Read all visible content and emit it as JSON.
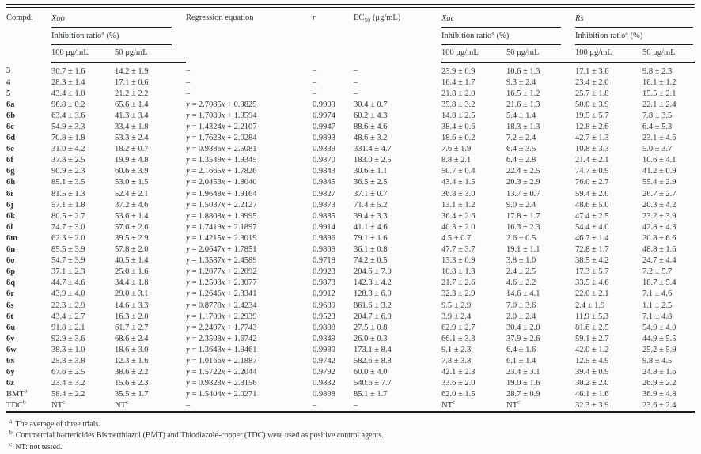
{
  "header": {
    "compd": "Compd.",
    "xoo": "Xoo",
    "xac": "Xac",
    "rs": "Rs",
    "regression": "Regression equation",
    "r": "r",
    "ec50_prefix": "EC",
    "ec50_sub": "50",
    "ec50_unit": "(μg/mL)",
    "inhibition": "Inhibition ratio",
    "inhibition_sup": "a",
    "inhibition_unit": "(%)",
    "dose_100": "100 μg/mL",
    "dose_50": "50 μg/mL"
  },
  "table": {
    "column_keys": [
      "compd",
      "xoo100",
      "xoo50",
      "eq",
      "r",
      "ec50",
      "xac100",
      "xac50",
      "rs100",
      "rs50"
    ],
    "rows": [
      {
        "compd": "3",
        "xoo100": "30.7 ± 1.6",
        "xoo50": "14.2 ± 1.9",
        "eq": "–",
        "r": "–",
        "ec50": "–",
        "xac100": "23.9 ± 0.9",
        "xac50": "10.6 ± 1.3",
        "rs100": "17.1 ± 3.6",
        "rs50": "9.8 ± 2.3"
      },
      {
        "compd": "4",
        "xoo100": "28.3 ± 1.4",
        "xoo50": "17.1 ± 0.6",
        "eq": "–",
        "r": "–",
        "ec50": "–",
        "xac100": "16.4 ± 1.7",
        "xac50": "9.3 ± 2.4",
        "rs100": "23.4 ± 2.0",
        "rs50": "16.1 ± 1.2"
      },
      {
        "compd": "5",
        "xoo100": "43.4 ± 1.0",
        "xoo50": "21.2 ± 2.2",
        "eq": "–",
        "r": "–",
        "ec50": "–",
        "xac100": "21.8 ± 2.0",
        "xac50": "16.5 ± 1.2",
        "rs100": "25.7 ± 1.8",
        "rs50": "15.5 ± 2.1"
      },
      {
        "compd": "6a",
        "xoo100": "96.8 ± 0.2",
        "xoo50": "65.6 ± 1.4",
        "eq": "y = 2.7085x + 0.9825",
        "r": "0.9909",
        "ec50": "30.4 ± 0.7",
        "xac100": "35.8 ± 3.2",
        "xac50": "21.6 ± 1.3",
        "rs100": "50.0 ± 3.9",
        "rs50": "22.1 ± 2.4"
      },
      {
        "compd": "6b",
        "xoo100": "63.4 ± 3.6",
        "xoo50": "41.3 ± 3.4",
        "eq": "y = 1.7089x + 1.9594",
        "r": "0.9974",
        "ec50": "60.2 ± 4.3",
        "xac100": "14.8 ± 2.5",
        "xac50": "5.4 ± 1.4",
        "rs100": "19.5 ± 5.7",
        "rs50": "7.8 ± 3.5"
      },
      {
        "compd": "6c",
        "xoo100": "54.9 ± 3.3",
        "xoo50": "33.4 ± 1.8",
        "eq": "y = 1.4324x + 2.2107",
        "r": "0.9947",
        "ec50": "88.6 ± 4.6",
        "xac100": "38.4 ± 0.6",
        "xac50": "18.3 ± 1.3",
        "rs100": "12.8 ± 2.6",
        "rs50": "6.4 ± 5.3"
      },
      {
        "compd": "6d",
        "xoo100": "70.8 ± 1.8",
        "xoo50": "53.3 ± 2.4",
        "eq": "y = 1.7623x + 2.0284",
        "r": "0.9893",
        "ec50": "48.6 ± 3.2",
        "xac100": "18.6 ± 0.2",
        "xac50": "7.2 ± 2.4",
        "rs100": "42.7 ± 1.3",
        "rs50": "23.1 ± 4.6"
      },
      {
        "compd": "6e",
        "xoo100": "31.0 ± 4.2",
        "xoo50": "18.2 ± 0.7",
        "eq": "y = 0.9886x + 2.5081",
        "r": "0.9839",
        "ec50": "331.4 ± 4.7",
        "xac100": "7.6 ± 1.9",
        "xac50": "6.4 ± 3.5",
        "rs100": "10.8 ± 3.3",
        "rs50": "5.0 ± 3.7"
      },
      {
        "compd": "6f",
        "xoo100": "37.8 ± 2.5",
        "xoo50": "19.9 ± 4.8",
        "eq": "y = 1.3549x + 1.9345",
        "r": "0.9870",
        "ec50": "183.0 ± 2.5",
        "xac100": "8.8 ± 2.1",
        "xac50": "6.4 ± 2.8",
        "rs100": "21.4 ± 2.1",
        "rs50": "10.6 ± 4.1"
      },
      {
        "compd": "6g",
        "xoo100": "90.9 ± 2.3",
        "xoo50": "60.6 ± 3.9",
        "eq": "y = 2.1665x + 1.7826",
        "r": "0.9843",
        "ec50": "30.6 ± 1.1",
        "xac100": "50.7 ± 0.4",
        "xac50": "22.4 ± 2.5",
        "rs100": "74.7 ± 0.9",
        "rs50": "41.2 ± 0.9"
      },
      {
        "compd": "6h",
        "xoo100": "85.1 ± 3.5",
        "xoo50": "53.0 ± 1.5",
        "eq": "y = 2.0453x + 1.8040",
        "r": "0.9845",
        "ec50": "36.5 ± 2.5",
        "xac100": "43.4 ± 1.5",
        "xac50": "20.3 ± 2.9",
        "rs100": "76.0 ± 2.7",
        "rs50": "55.4 ± 2.9"
      },
      {
        "compd": "6i",
        "xoo100": "81.5 ± 1.3",
        "xoo50": "52.4 ± 2.1",
        "eq": "y = 1.9648x + 1.9164",
        "r": "0.9827",
        "ec50": "37.1 ± 0.7",
        "xac100": "36.8 ± 3.0",
        "xac50": "13.7 ± 0.7",
        "rs100": "59.4 ± 2.0",
        "rs50": "26.7 ± 2.7"
      },
      {
        "compd": "6j",
        "xoo100": "57.1 ± 1.8",
        "xoo50": "37.2 ± 4.6",
        "eq": "y = 1.5037x + 2.2127",
        "r": "0.9873",
        "ec50": "71.4 ± 5.2",
        "xac100": "13.1 ± 1.2",
        "xac50": "9.0 ± 2.4",
        "rs100": "48.6 ± 5.0",
        "rs50": "20.3 ± 4.2"
      },
      {
        "compd": "6k",
        "xoo100": "80.5 ± 2.7",
        "xoo50": "53.6 ± 1.4",
        "eq": "y = 1.8808x + 1.9995",
        "r": "0.9885",
        "ec50": "39.4 ± 3.3",
        "xac100": "36.4 ± 2.6",
        "xac50": "17.8 ± 1.7",
        "rs100": "47.4 ± 2.5",
        "rs50": "23.2 ± 3.9"
      },
      {
        "compd": "6l",
        "xoo100": "74.7 ± 3.0",
        "xoo50": "57.6 ± 2.6",
        "eq": "y = 1.7419x + 2.1897",
        "r": "0.9914",
        "ec50": "41.1 ± 4.6",
        "xac100": "40.3 ± 2.0",
        "xac50": "16.3 ± 2.3",
        "rs100": "54.4 ± 4.0",
        "rs50": "42.8 ± 4.3"
      },
      {
        "compd": "6m",
        "xoo100": "62.3 ± 2.0",
        "xoo50": "39.5 ± 2.9",
        "eq": "y = 1.4215x + 2.3019",
        "r": "0.9896",
        "ec50": "79.1 ± 1.6",
        "xac100": "4.5 ± 0.7",
        "xac50": "2.6 ± 0.5",
        "rs100": "46.7 ± 1.4",
        "rs50": "20.8 ± 6.6"
      },
      {
        "compd": "6n",
        "xoo100": "85.5 ± 3.9",
        "xoo50": "57.8 ± 2.0",
        "eq": "y = 2.0647x + 1.7851",
        "r": "0.9808",
        "ec50": "36.1 ± 0.8",
        "xac100": "47.7 ± 3.7",
        "xac50": "19.1 ± 1.1",
        "rs100": "72.8 ± 1.7",
        "rs50": "48.8 ± 1.6"
      },
      {
        "compd": "6o",
        "xoo100": "54.7 ± 3.9",
        "xoo50": "40.5 ± 1.4",
        "eq": "y = 1.3587x + 2.4589",
        "r": "0.9718",
        "ec50": "74.2 ± 0.5",
        "xac100": "13.3 ± 0.9",
        "xac50": "3.8 ± 1.0",
        "rs100": "38.5 ± 4.2",
        "rs50": "24.7 ± 4.4"
      },
      {
        "compd": "6p",
        "xoo100": "37.1 ± 2.3",
        "xoo50": "25.0 ± 1.6",
        "eq": "y = 1.2077x + 2.2092",
        "r": "0.9923",
        "ec50": "204.6 ± 7.0",
        "xac100": "10.8 ± 1.3",
        "xac50": "2.4 ± 2.5",
        "rs100": "17.3 ± 5.7",
        "rs50": "7.2 ± 5.7"
      },
      {
        "compd": "6q",
        "xoo100": "44.7 ± 4.6",
        "xoo50": "34.4 ± 1.8",
        "eq": "y = 1.2503x + 2.3077",
        "r": "0.9873",
        "ec50": "142.3 ± 4.2",
        "xac100": "21.7 ± 2.6",
        "xac50": "4.6 ± 2.2",
        "rs100": "33.5 ± 4.6",
        "rs50": "18.7 ± 5.4"
      },
      {
        "compd": "6r",
        "xoo100": "43.9 ± 4.0",
        "xoo50": "29.0 ± 3.1",
        "eq": "y = 1.2646x + 2.3341",
        "r": "0.9912",
        "ec50": "128.3 ± 6.0",
        "xac100": "32.3 ± 2.9",
        "xac50": "14.6 ± 4.1",
        "rs100": "22.0 ± 2.1",
        "rs50": "7.1 ± 4.6"
      },
      {
        "compd": "6s",
        "xoo100": "22.3 ± 2.9",
        "xoo50": "14.6 ± 3.3",
        "eq": "y = 0.8778x + 2.4234",
        "r": "0.9689",
        "ec50": "861.6 ± 3.2",
        "xac100": "9.5 ± 2.9",
        "xac50": "7.0 ± 3.6",
        "rs100": "2.4 ± 1.9",
        "rs50": "1.1 ± 2.5"
      },
      {
        "compd": "6t",
        "xoo100": "43.4 ± 2.7",
        "xoo50": "16.3 ± 2.0",
        "eq": "y = 1.1709x + 2.2939",
        "r": "0.9523",
        "ec50": "204.7 ± 6.0",
        "xac100": "3.9 ± 2.4",
        "xac50": "2.0 ± 2.4",
        "rs100": "11.9 ± 5.3",
        "rs50": "7.1 ± 4.8"
      },
      {
        "compd": "6u",
        "xoo100": "91.8 ± 2.1",
        "xoo50": "61.7 ± 2.7",
        "eq": "y = 2.2407x + 1.7743",
        "r": "0.9888",
        "ec50": "27.5 ± 0.8",
        "xac100": "62.9 ± 2.7",
        "xac50": "30.4 ± 2.0",
        "rs100": "81.6 ± 2.5",
        "rs50": "54.9 ± 4.0"
      },
      {
        "compd": "6v",
        "xoo100": "92.9 ± 3.6",
        "xoo50": "68.6 ± 2.4",
        "eq": "y = 2.3508x + 1.6742",
        "r": "0.9849",
        "ec50": "26.0 ± 0.3",
        "xac100": "66.1 ± 3.3",
        "xac50": "37.9 ± 2.6",
        "rs100": "59.1 ± 2.7",
        "rs50": "44.9 ± 5.5"
      },
      {
        "compd": "6w",
        "xoo100": "38.3 ± 1.0",
        "xoo50": "18.6 ± 3.0",
        "eq": "y = 1.3643x + 1.9461",
        "r": "0.9980",
        "ec50": "173.1 ± 8.4",
        "xac100": "9.1 ± 2.3",
        "xac50": "6.4 ± 1.6",
        "rs100": "42.0 ± 1.2",
        "rs50": "25.2 ± 5.9"
      },
      {
        "compd": "6x",
        "xoo100": "25.8 ± 3.8",
        "xoo50": "12.3 ± 1.6",
        "eq": "y = 1.0166x + 2.1887",
        "r": "0.9742",
        "ec50": "582.6 ± 8.8",
        "xac100": "7.8 ± 3.8",
        "xac50": "6.1 ± 1.4",
        "rs100": "12.5 ± 4.9",
        "rs50": "9.8 ± 4.5"
      },
      {
        "compd": "6y",
        "xoo100": "67.6 ± 2.5",
        "xoo50": "38.6 ± 2.2",
        "eq": "y = 1.5722x + 2.2044",
        "r": "0.9792",
        "ec50": "60.0 ± 4.0",
        "xac100": "42.1 ± 2.3",
        "xac50": "23.4 ± 3.1",
        "rs100": "39.4 ± 0.9",
        "rs50": "24.8 ± 1.6"
      },
      {
        "compd": "6z",
        "xoo100": "23.4 ± 3.2",
        "xoo50": "15.6 ± 2.3",
        "eq": "y = 0.9823x + 2.3156",
        "r": "0.9832",
        "ec50": "540.6 ± 7.7",
        "xac100": "33.6 ± 2.0",
        "xac50": "19.0 ± 1.6",
        "rs100": "30.2 ± 2.0",
        "rs50": "26.9 ± 2.2"
      },
      {
        "compd": "BMT^b",
        "xoo100": "58.4 ± 2.2",
        "xoo50": "35.5 ± 1.7",
        "eq": "y = 1.5404x + 2.0271",
        "r": "0.9808",
        "ec50": "85.1 ± 1.7",
        "xac100": "62.0 ± 1.5",
        "xac50": "28.7 ± 0.9",
        "rs100": "46.1 ± 1.6",
        "rs50": "36.9 ± 4.8"
      },
      {
        "compd": "TDC^b",
        "xoo100": "NT^c",
        "xoo50": "NT^c",
        "eq": "–",
        "r": "–",
        "ec50": "–",
        "xac100": "NT^c",
        "xac50": "NT^c",
        "rs100": "32.3 ± 3.9",
        "rs50": "23.6 ± 2.4"
      }
    ]
  },
  "footnotes": [
    {
      "marker": "a",
      "text": "The average of three trials."
    },
    {
      "marker": "b",
      "text": "Commercial bactericides Bismerthiazol (BMT) and Thiodiazole-copper (TDC) were used as positive control agents."
    },
    {
      "marker": "c",
      "text": "NT: not tested."
    }
  ]
}
